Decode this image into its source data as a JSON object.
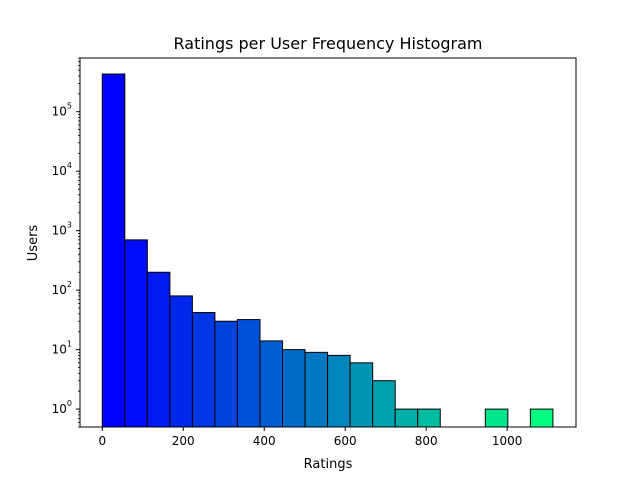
{
  "chart_data": {
    "type": "bar",
    "title": "Ratings per User Frequency Histogram",
    "xlabel": "Ratings",
    "ylabel": "Users",
    "yscale": "log",
    "xlim": [
      -55,
      1170
    ],
    "ylim": [
      0.5,
      800000
    ],
    "grid": false,
    "bin_width": 55.65,
    "bins": [
      {
        "start": 0.0,
        "count": 430000
      },
      {
        "start": 55.65,
        "count": 700
      },
      {
        "start": 111.3,
        "count": 200
      },
      {
        "start": 166.95,
        "count": 80
      },
      {
        "start": 222.6,
        "count": 42
      },
      {
        "start": 278.25,
        "count": 30
      },
      {
        "start": 333.9,
        "count": 32
      },
      {
        "start": 389.55,
        "count": 14
      },
      {
        "start": 445.2,
        "count": 10
      },
      {
        "start": 500.85,
        "count": 9
      },
      {
        "start": 556.5,
        "count": 8
      },
      {
        "start": 612.15,
        "count": 6
      },
      {
        "start": 667.8,
        "count": 3
      },
      {
        "start": 723.45,
        "count": 1
      },
      {
        "start": 779.1,
        "count": 1
      },
      {
        "start": 834.75,
        "count": 0
      },
      {
        "start": 890.4,
        "count": 0
      },
      {
        "start": 946.05,
        "count": 1
      },
      {
        "start": 1001.7,
        "count": 0
      },
      {
        "start": 1057.35,
        "count": 1
      }
    ],
    "x_ticks": [
      0,
      200,
      400,
      600,
      800,
      1000
    ],
    "y_ticks": [
      {
        "base": "10",
        "exp": "0"
      },
      {
        "base": "10",
        "exp": "1"
      },
      {
        "base": "10",
        "exp": "2"
      },
      {
        "base": "10",
        "exp": "3"
      },
      {
        "base": "10",
        "exp": "4"
      },
      {
        "base": "10",
        "exp": "5"
      }
    ],
    "colormap": "winter"
  }
}
